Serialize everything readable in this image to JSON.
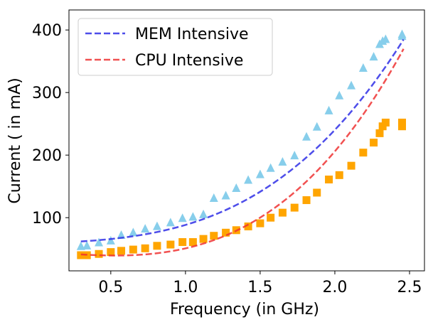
{
  "chart_data": {
    "type": "scatter",
    "xlabel": "Frequency (in GHz)",
    "ylabel": "Current ( in mA)",
    "xlim": [
      0.22,
      2.6
    ],
    "ylim": [
      15,
      432
    ],
    "xticks": [
      0.5,
      1.0,
      1.5,
      2.0,
      2.5
    ],
    "xtick_labels": [
      "0.5",
      "1.0",
      "1.5",
      "2.0",
      "2.5"
    ],
    "yticks": [
      100,
      200,
      300,
      400
    ],
    "ytick_labels": [
      "100",
      "200",
      "300",
      "400"
    ],
    "grid": false,
    "legend_position": "top-left",
    "series": [
      {
        "name": "MEM Intensive",
        "marker": "triangle",
        "marker_color": "#87CEEB",
        "fit_color": "#2f2fe6",
        "points": [
          {
            "x": 0.3,
            "y": 55
          },
          {
            "x": 0.34,
            "y": 56
          },
          {
            "x": 0.42,
            "y": 61
          },
          {
            "x": 0.5,
            "y": 64
          },
          {
            "x": 0.57,
            "y": 73
          },
          {
            "x": 0.65,
            "y": 77
          },
          {
            "x": 0.73,
            "y": 83
          },
          {
            "x": 0.81,
            "y": 87
          },
          {
            "x": 0.9,
            "y": 93
          },
          {
            "x": 0.98,
            "y": 100
          },
          {
            "x": 1.05,
            "y": 102
          },
          {
            "x": 1.12,
            "y": 106
          },
          {
            "x": 1.19,
            "y": 132
          },
          {
            "x": 1.27,
            "y": 136
          },
          {
            "x": 1.34,
            "y": 148
          },
          {
            "x": 1.42,
            "y": 161
          },
          {
            "x": 1.5,
            "y": 170
          },
          {
            "x": 1.57,
            "y": 180
          },
          {
            "x": 1.65,
            "y": 190
          },
          {
            "x": 1.73,
            "y": 200
          },
          {
            "x": 1.81,
            "y": 230
          },
          {
            "x": 1.88,
            "y": 246
          },
          {
            "x": 1.96,
            "y": 272
          },
          {
            "x": 2.03,
            "y": 296
          },
          {
            "x": 2.11,
            "y": 312
          },
          {
            "x": 2.19,
            "y": 340
          },
          {
            "x": 2.26,
            "y": 358
          },
          {
            "x": 2.3,
            "y": 378
          },
          {
            "x": 2.32,
            "y": 383
          },
          {
            "x": 2.34,
            "y": 386
          },
          {
            "x": 2.45,
            "y": 391
          },
          {
            "x": 2.45,
            "y": 394
          }
        ],
        "fit": {
          "a": 20.35,
          "b": 9.45,
          "c": 58.6,
          "x_range": [
            0.3,
            2.46
          ]
        }
      },
      {
        "name": "CPU Intensive",
        "marker": "square",
        "marker_color": "#FFA500",
        "fit_color": "#ee3333",
        "points": [
          {
            "x": 0.3,
            "y": 40
          },
          {
            "x": 0.34,
            "y": 40
          },
          {
            "x": 0.42,
            "y": 42
          },
          {
            "x": 0.5,
            "y": 45
          },
          {
            "x": 0.57,
            "y": 47
          },
          {
            "x": 0.65,
            "y": 49
          },
          {
            "x": 0.73,
            "y": 51
          },
          {
            "x": 0.81,
            "y": 55
          },
          {
            "x": 0.9,
            "y": 57
          },
          {
            "x": 0.98,
            "y": 61
          },
          {
            "x": 1.05,
            "y": 61
          },
          {
            "x": 1.12,
            "y": 66
          },
          {
            "x": 1.19,
            "y": 71
          },
          {
            "x": 1.27,
            "y": 76
          },
          {
            "x": 1.34,
            "y": 80
          },
          {
            "x": 1.42,
            "y": 86
          },
          {
            "x": 1.5,
            "y": 91
          },
          {
            "x": 1.57,
            "y": 100
          },
          {
            "x": 1.65,
            "y": 108
          },
          {
            "x": 1.73,
            "y": 116
          },
          {
            "x": 1.81,
            "y": 128
          },
          {
            "x": 1.88,
            "y": 140
          },
          {
            "x": 1.96,
            "y": 161
          },
          {
            "x": 2.03,
            "y": 168
          },
          {
            "x": 2.11,
            "y": 183
          },
          {
            "x": 2.19,
            "y": 204
          },
          {
            "x": 2.26,
            "y": 220
          },
          {
            "x": 2.3,
            "y": 235
          },
          {
            "x": 2.32,
            "y": 246
          },
          {
            "x": 2.34,
            "y": 252
          },
          {
            "x": 2.45,
            "y": 246
          },
          {
            "x": 2.45,
            "y": 252
          }
        ],
        "fit": {
          "a": 25.2,
          "b": -21.3,
          "c": 47.0,
          "x_range": [
            0.3,
            2.46
          ]
        }
      }
    ]
  }
}
